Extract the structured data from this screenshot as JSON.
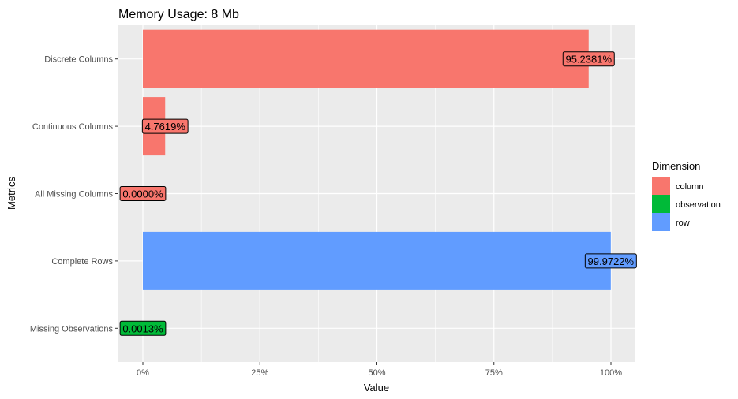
{
  "chart_data": {
    "type": "bar",
    "orientation": "horizontal",
    "title": "Memory Usage: 8 Mb",
    "xlabel": "Value",
    "ylabel": "Metrics",
    "xlim": [
      0,
      1
    ],
    "x_ticks": [
      {
        "value": 0,
        "label": "0%"
      },
      {
        "value": 0.25,
        "label": "25%"
      },
      {
        "value": 0.5,
        "label": "50%"
      },
      {
        "value": 0.75,
        "label": "75%"
      },
      {
        "value": 1,
        "label": "100%"
      }
    ],
    "grid": true,
    "legend_position": "right",
    "legend_title": "Dimension",
    "legend": [
      {
        "name": "column",
        "color": "#F8766D"
      },
      {
        "name": "observation",
        "color": "#00BA38"
      },
      {
        "name": "row",
        "color": "#619CFF"
      }
    ],
    "bars": [
      {
        "category": "Discrete Columns",
        "value": 0.952381,
        "label": "95.2381%",
        "dimension": "column"
      },
      {
        "category": "Continuous Columns",
        "value": 0.047619,
        "label": "4.7619%",
        "dimension": "column"
      },
      {
        "category": "All Missing Columns",
        "value": 0.0,
        "label": "0.0000%",
        "dimension": "column"
      },
      {
        "category": "Complete Rows",
        "value": 0.999722,
        "label": "99.9722%",
        "dimension": "row"
      },
      {
        "category": "Missing Observations",
        "value": 1.3e-05,
        "label": "0.0013%",
        "dimension": "observation"
      }
    ]
  }
}
